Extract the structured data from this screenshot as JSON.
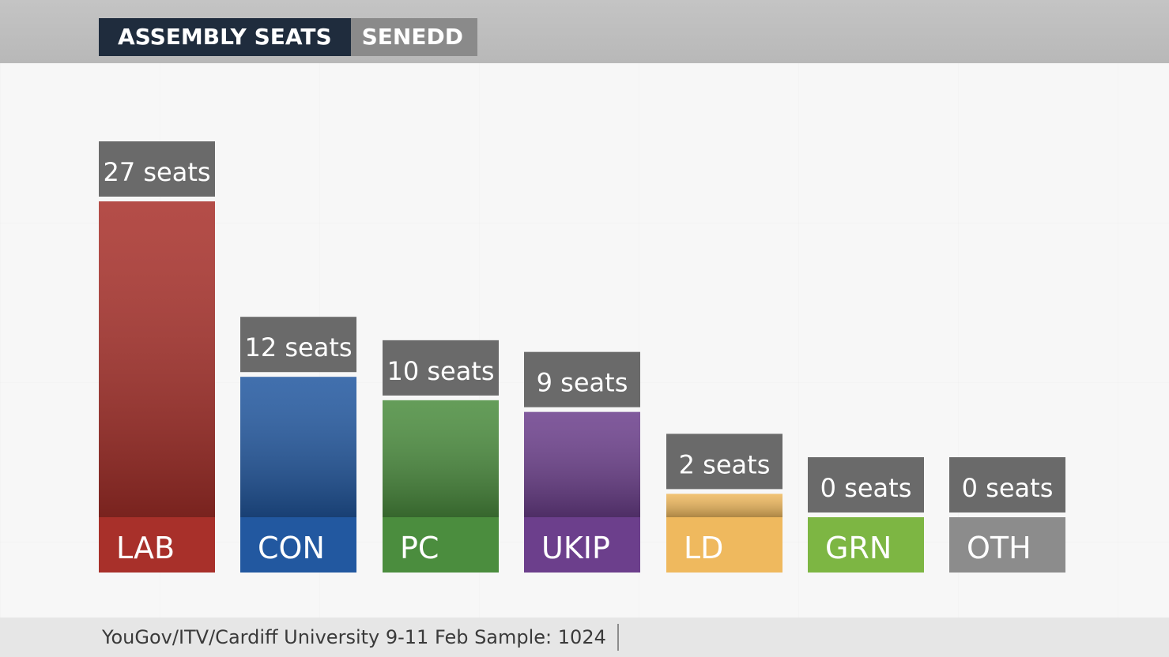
{
  "header": {
    "title": "ASSEMBLY SEATS",
    "subtitle": "SENEDD"
  },
  "footer": {
    "source": "YouGov/ITV/Cardiff University 9-11 Feb Sample: 1024"
  },
  "chart_data": {
    "type": "bar",
    "title": "ASSEMBLY SEATS",
    "categories": [
      "LAB",
      "CON",
      "PC",
      "UKIP",
      "LD",
      "GRN",
      "OTH"
    ],
    "values": [
      27,
      12,
      10,
      9,
      2,
      0,
      0
    ],
    "value_labels": [
      "27 seats",
      "12 seats",
      "10 seats",
      "9 seats",
      "2 seats",
      "0 seats",
      "0 seats"
    ],
    "colors": [
      "#a8302a",
      "#2258a0",
      "#4b8d3e",
      "#6c3f8c",
      "#efb95e",
      "#7db643",
      "#8c8c8c"
    ],
    "xlabel": "",
    "ylabel": "",
    "ylim": [
      0,
      27
    ],
    "grid": false,
    "legend": "none"
  }
}
